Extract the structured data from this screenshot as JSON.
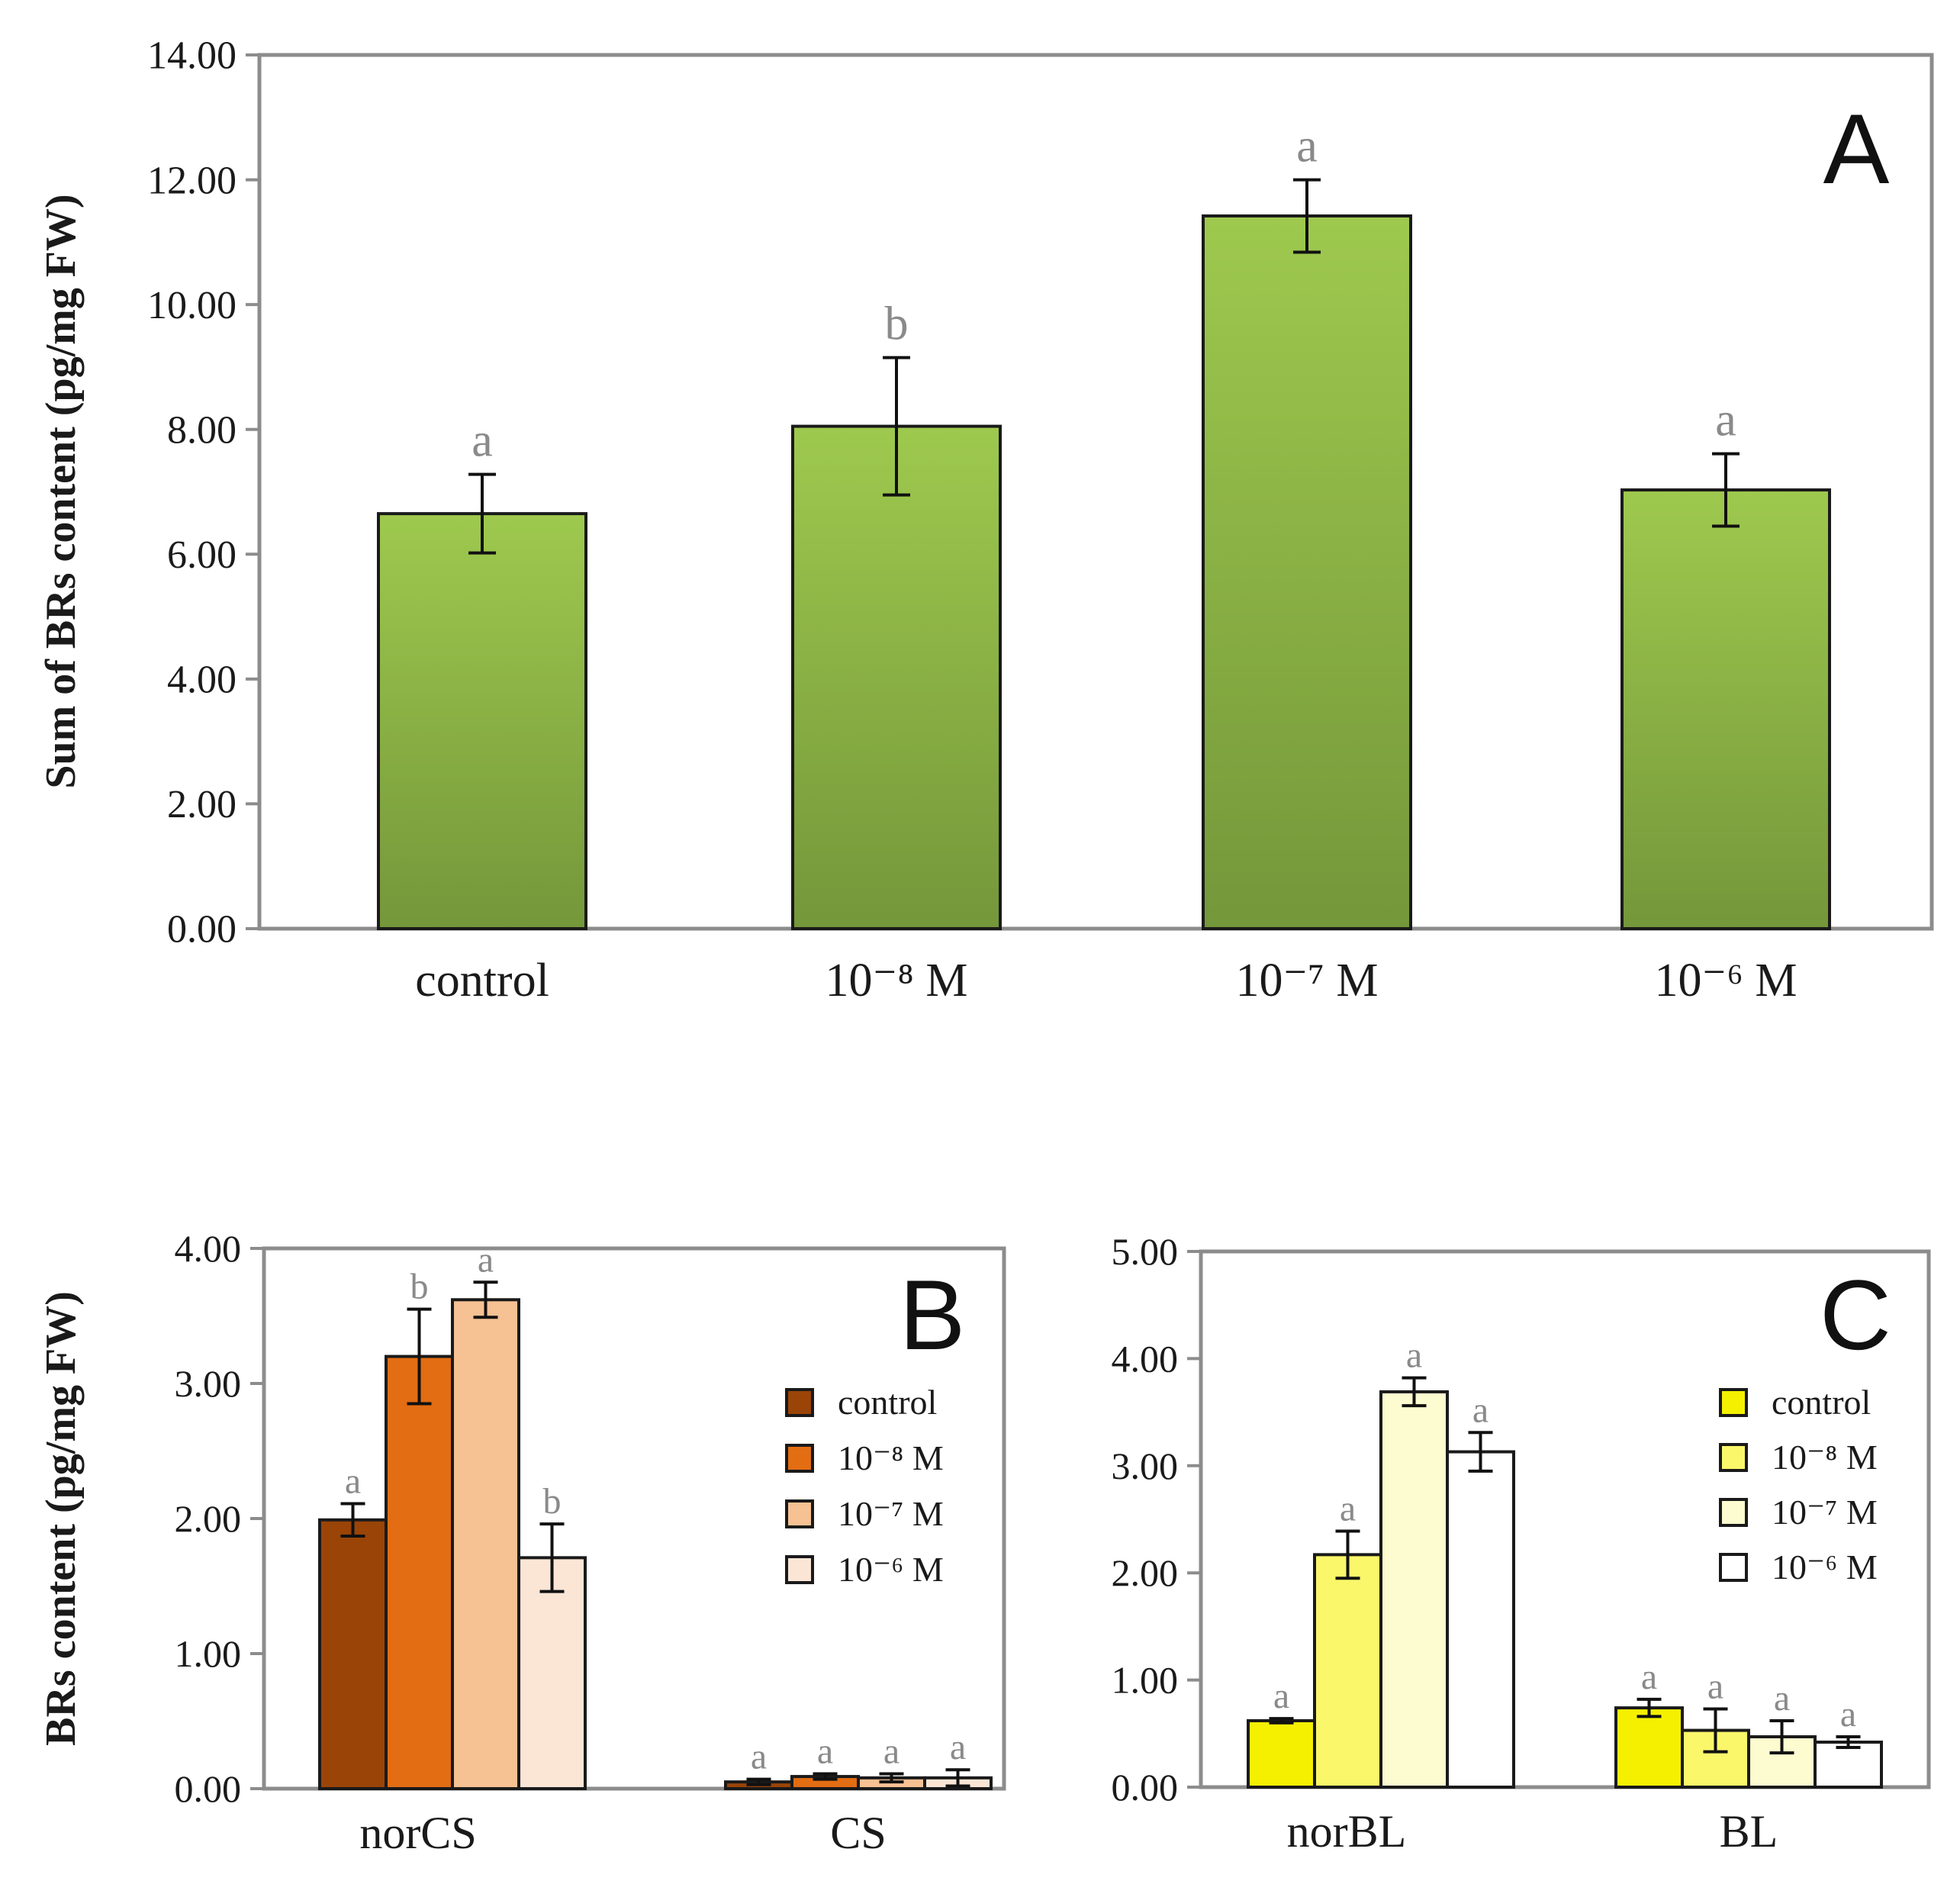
{
  "chart_data": [
    {
      "id": "A",
      "type": "bar",
      "panel_label": "A",
      "ylabel": "Sum of BRs content (pg/mg FW)",
      "xlabel": "",
      "ylim": [
        0,
        14
      ],
      "y_ticks": [
        "0.00",
        "2.00",
        "4.00",
        "6.00",
        "8.00",
        "10.00",
        "12.00",
        "14.00"
      ],
      "categories": [
        "control",
        "10⁻⁸ M",
        "10⁻⁷ M",
        "10⁻⁶ M"
      ],
      "values": [
        6.65,
        8.05,
        11.42,
        7.03
      ],
      "errors": [
        0.63,
        1.1,
        0.58,
        0.58
      ],
      "letters": [
        "a",
        "b",
        "a",
        "a"
      ],
      "color": "#8ab645"
    },
    {
      "id": "B",
      "type": "bar",
      "panel_label": "B",
      "ylabel": "BRs content (pg/mg FW)",
      "xlabel": "",
      "ylim": [
        0,
        4
      ],
      "y_ticks": [
        "0.00",
        "1.00",
        "2.00",
        "3.00",
        "4.00"
      ],
      "categories": [
        "norCS",
        "CS"
      ],
      "series": [
        {
          "name": "control",
          "color": "#9a4408",
          "values": [
            1.99,
            0.05
          ],
          "errors": [
            0.12,
            0.02
          ]
        },
        {
          "name": "10⁻⁸ M",
          "color": "#e26d13",
          "values": [
            3.2,
            0.09
          ],
          "errors": [
            0.35,
            0.02
          ]
        },
        {
          "name": "10⁻⁷ M",
          "color": "#f6c193",
          "values": [
            3.62,
            0.08
          ],
          "errors": [
            0.13,
            0.03
          ]
        },
        {
          "name": "10⁻⁶ M",
          "color": "#fbe6d6",
          "values": [
            1.71,
            0.08
          ],
          "errors": [
            0.25,
            0.06
          ]
        }
      ],
      "letters": [
        [
          "a",
          "b",
          "a",
          "b"
        ],
        [
          "a",
          "a",
          "a",
          "a"
        ]
      ],
      "legend": [
        "control",
        "10⁻⁸ M",
        "10⁻⁷ M",
        "10⁻⁶ M"
      ]
    },
    {
      "id": "C",
      "type": "bar",
      "panel_label": "C",
      "ylabel": "",
      "xlabel": "",
      "ylim": [
        0,
        5
      ],
      "y_ticks": [
        "0.00",
        "1.00",
        "2.00",
        "3.00",
        "4.00",
        "5.00"
      ],
      "categories": [
        "norBL",
        "BL"
      ],
      "series": [
        {
          "name": "control",
          "color": "#f5f000",
          "values": [
            0.62,
            0.74
          ],
          "errors": [
            0.02,
            0.08
          ]
        },
        {
          "name": "10⁻⁸ M",
          "color": "#fbf76a",
          "values": [
            2.17,
            0.53
          ],
          "errors": [
            0.22,
            0.2
          ]
        },
        {
          "name": "10⁻⁷ M",
          "color": "#fdfcd0",
          "values": [
            3.69,
            0.47
          ],
          "errors": [
            0.13,
            0.15
          ]
        },
        {
          "name": "10⁻⁶ M",
          "color": "#ffffff",
          "values": [
            3.13,
            0.42
          ],
          "errors": [
            0.18,
            0.05
          ]
        }
      ],
      "letters": [
        [
          "a",
          "a",
          "a",
          "a"
        ],
        [
          "a",
          "a",
          "a",
          "a"
        ]
      ],
      "legend": [
        "control",
        "10⁻⁸ M",
        "10⁻⁷ M",
        "10⁻⁶ M"
      ]
    }
  ]
}
